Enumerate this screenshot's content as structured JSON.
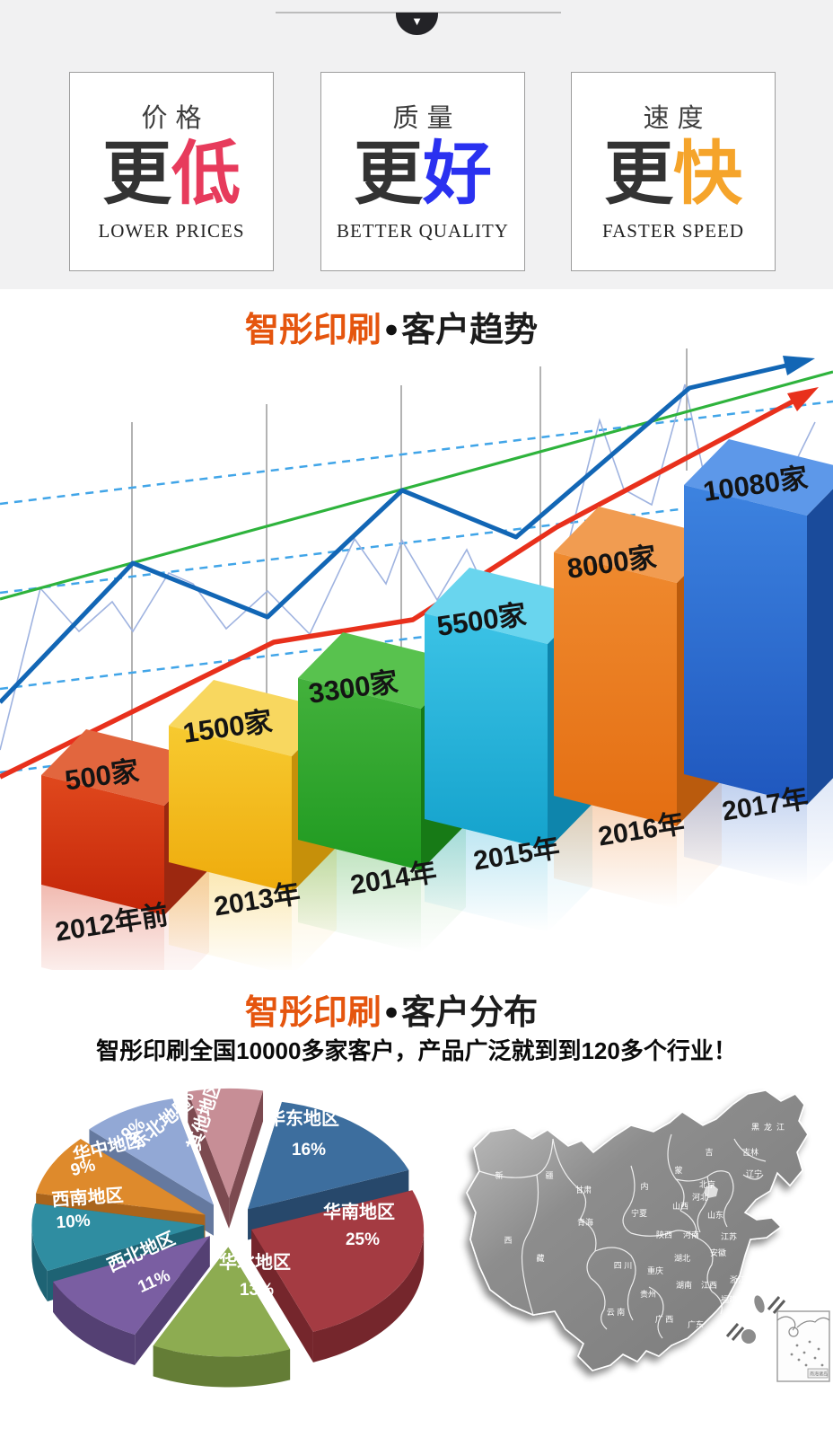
{
  "top_banner": {
    "cards": [
      {
        "heading": "价格",
        "big_prefix": "更",
        "big_accent": "低",
        "accent_color": "#e73b5c",
        "english": "LOWER PRICES"
      },
      {
        "heading": "质量",
        "big_prefix": "更",
        "big_accent": "好",
        "accent_color": "#2a31f0",
        "english": "BETTER QUALITY"
      },
      {
        "heading": "速度",
        "big_prefix": "更",
        "big_accent": "快",
        "accent_color": "#f5a42b",
        "english": "FASTER SPEED"
      }
    ]
  },
  "trend_section": {
    "brand": "智彤印刷",
    "bullet": "●",
    "title": "客户趋势"
  },
  "distribution_section": {
    "brand": "智彤印刷",
    "bullet": "●",
    "title": "客户分布",
    "subtitle": "智彤印刷全国10000多家客户，产品广泛就到到120多个行业！"
  },
  "chart_data": [
    {
      "type": "bar",
      "title": "智彤印刷●客户趋势",
      "categories": [
        "2012年前",
        "2013年",
        "2014年",
        "2015年",
        "2016年",
        "2017年"
      ],
      "values": [
        500,
        1500,
        3300,
        5500,
        8000,
        10080
      ],
      "value_labels": [
        "500家",
        "1500家",
        "3300家",
        "5500家",
        "8000家",
        "10080家"
      ],
      "unit": "家",
      "bar_colors": [
        "#d63418",
        "#f2b60f",
        "#2ba32b",
        "#22acd4",
        "#e87417",
        "#2a62c8"
      ],
      "grid": "vertical-gray-lines",
      "legend": "none",
      "trend_lines": [
        {
          "name": "blue-arrow-line",
          "color": "#1266b5",
          "style": "solid-arrow"
        },
        {
          "name": "red-arrow-line",
          "color": "#e8301c",
          "style": "solid-arrow"
        },
        {
          "name": "green-line",
          "color": "#2eb33c",
          "style": "solid"
        },
        {
          "name": "light-blue-zigzag",
          "color": "#9fb3e0",
          "style": "thin-zigzag"
        },
        {
          "name": "dashed-guides",
          "color": "#41a5e8",
          "style": "dashed",
          "count": 4
        }
      ]
    },
    {
      "type": "pie",
      "title": "智彤印刷●客户分布",
      "legend_position": "on-slice",
      "slices": [
        {
          "label": "华东地区",
          "value": 16,
          "pct_label": "16%",
          "color": "#3d6e9e",
          "side_color": "#27486b"
        },
        {
          "label": "华南地区",
          "value": 25,
          "pct_label": "25%",
          "color": "#a43b42",
          "side_color": "#75262c"
        },
        {
          "label": "华北地区",
          "value": 13,
          "pct_label": "13%",
          "color": "#8dac51",
          "side_color": "#647d36"
        },
        {
          "label": "西北地区",
          "value": 11,
          "pct_label": "11%",
          "color": "#7a5ea2",
          "side_color": "#544073"
        },
        {
          "label": "西南地区",
          "value": 10,
          "pct_label": "10%",
          "color": "#2f8da1",
          "side_color": "#1e6374"
        },
        {
          "label": "华中地区",
          "value": 9,
          "pct_label": "9%",
          "color": "#de8a2c",
          "side_color": "#a9641c"
        },
        {
          "label": "东北地区",
          "value": 9,
          "pct_label": "9%",
          "color": "#92a8d5",
          "side_color": "#65799f"
        },
        {
          "label": "其他地区",
          "value": 7,
          "pct_label": "7%",
          "color": "#c78e96",
          "side_color": "#7c4a50"
        }
      ]
    }
  ],
  "map": {
    "provinces": [
      "新",
      "疆",
      "甘肃",
      "青海",
      "西",
      "藏",
      "四 川",
      "重庆",
      "云 南",
      "贵州",
      "广 西",
      "广东",
      "湖南",
      "江西",
      "浙江",
      "福建",
      "安徽",
      "江苏",
      "河南",
      "陕西",
      "山西",
      "河北",
      "北京",
      "山东",
      "湖北",
      "宁夏",
      "内",
      "蒙",
      "吉",
      "吉林",
      "辽宁",
      "黑龙江"
    ],
    "inset_label": "南海诸岛"
  }
}
